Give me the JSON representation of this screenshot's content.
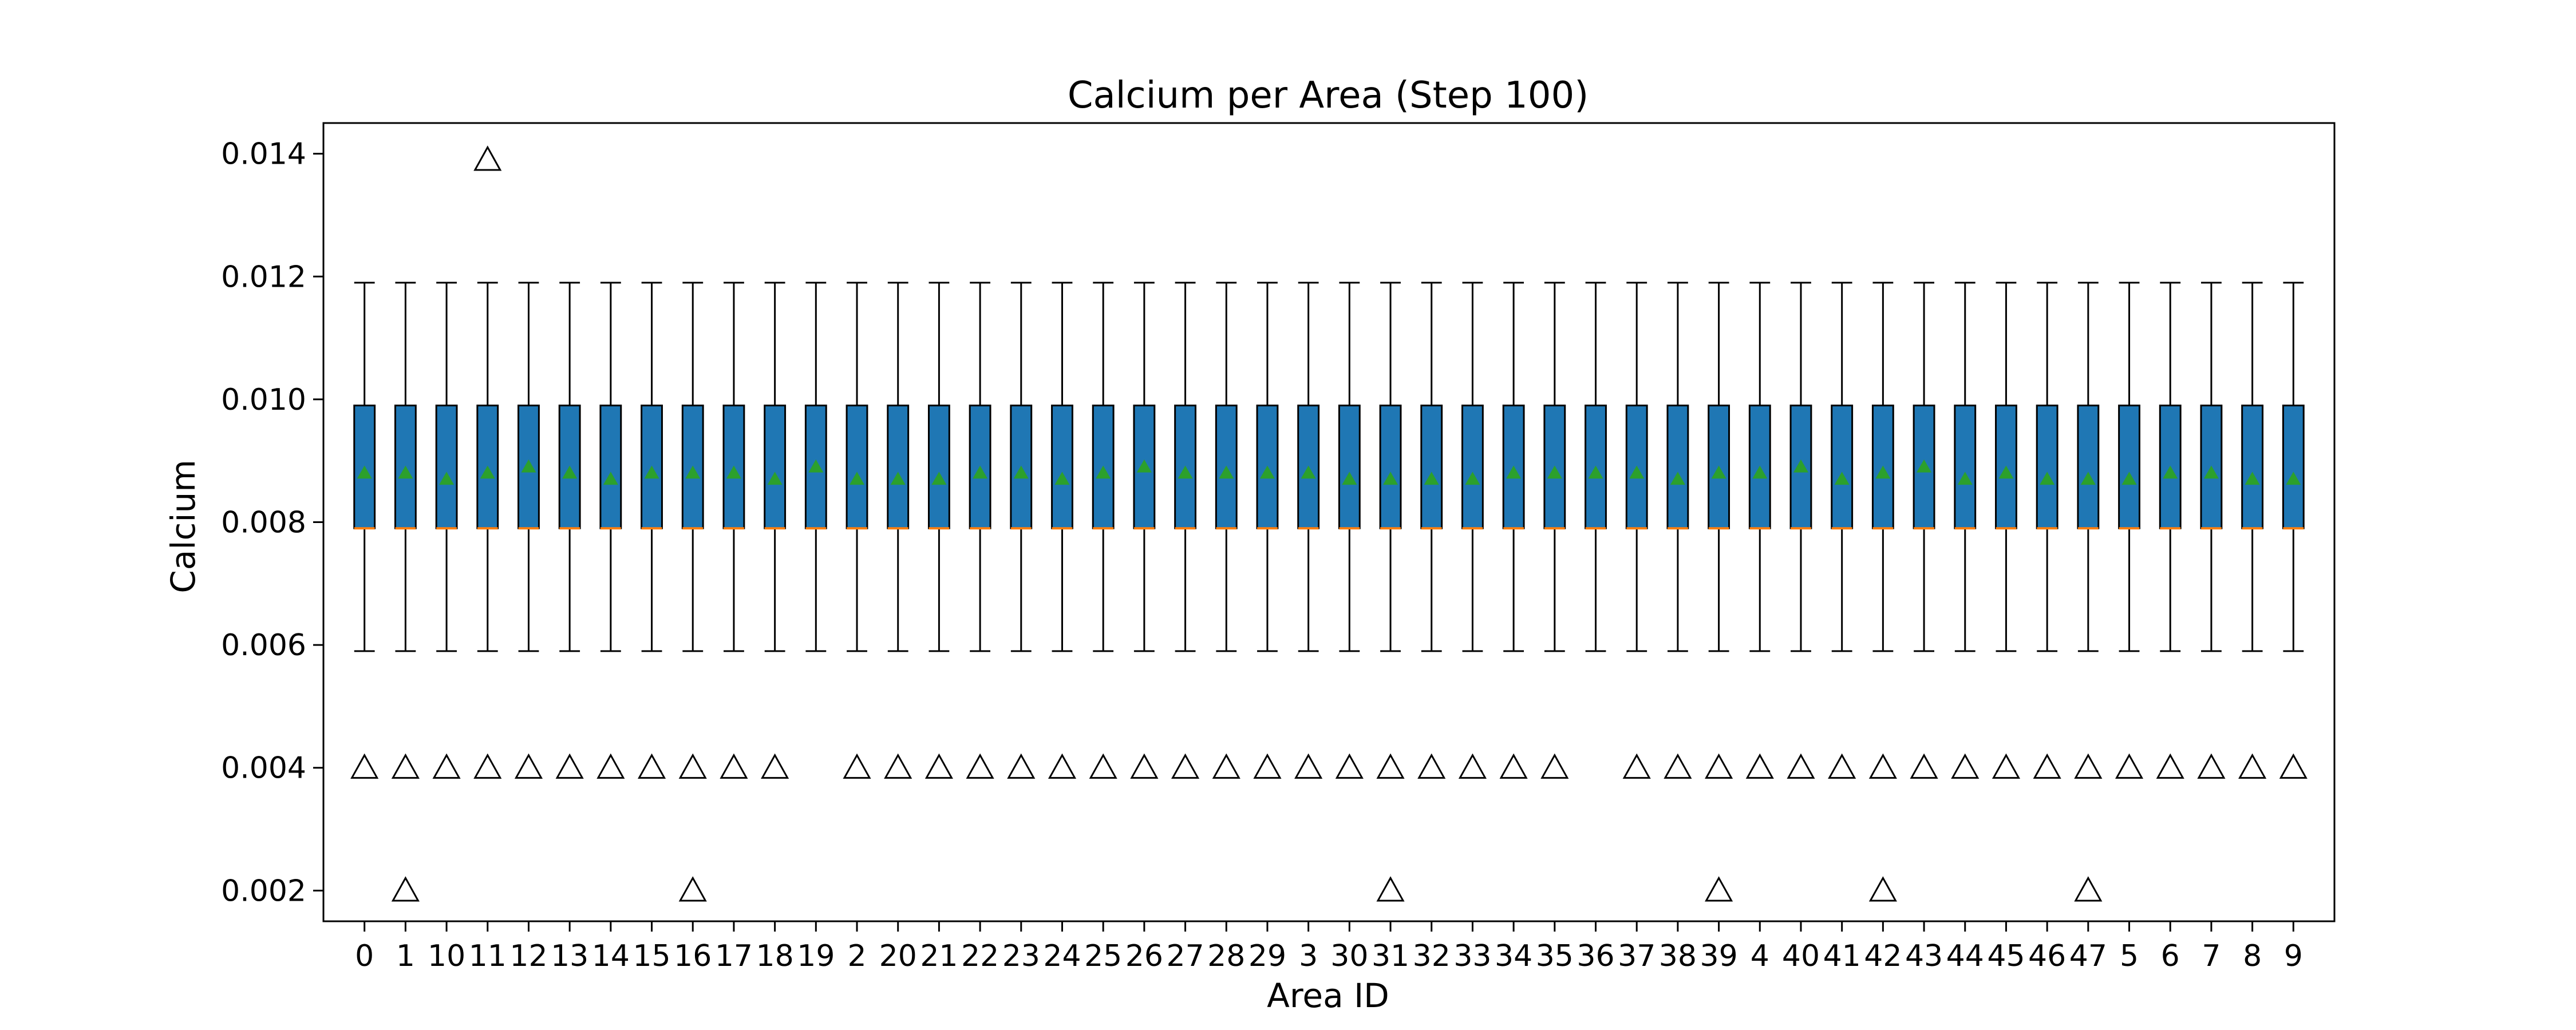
{
  "chart_data": {
    "type": "box",
    "title": "Calcium per Area (Step 100)",
    "xlabel": "Area ID",
    "ylabel": "Calcium",
    "ylim": [
      0.0015,
      0.0145
    ],
    "yticks": [
      0.002,
      0.004,
      0.006,
      0.008,
      0.01,
      0.012,
      0.014
    ],
    "ytick_labels": [
      "0.002",
      "0.004",
      "0.006",
      "0.008",
      "0.010",
      "0.012",
      "0.014"
    ],
    "categories": [
      "0",
      "1",
      "10",
      "11",
      "12",
      "13",
      "14",
      "15",
      "16",
      "17",
      "18",
      "19",
      "2",
      "20",
      "21",
      "22",
      "23",
      "24",
      "25",
      "26",
      "27",
      "28",
      "29",
      "3",
      "30",
      "31",
      "32",
      "33",
      "34",
      "35",
      "36",
      "37",
      "38",
      "39",
      "4",
      "40",
      "41",
      "42",
      "43",
      "44",
      "45",
      "46",
      "47",
      "5",
      "6",
      "7",
      "8",
      "9"
    ],
    "box": {
      "whisker_low": 0.0059,
      "q1": 0.0079,
      "median": 0.0079,
      "q3": 0.0099,
      "whisker_high": 0.0119
    },
    "means": [
      0.0088,
      0.0088,
      0.0087,
      0.0088,
      0.0089,
      0.0088,
      0.0087,
      0.0088,
      0.0088,
      0.0088,
      0.0087,
      0.0089,
      0.0087,
      0.0087,
      0.0087,
      0.0088,
      0.0088,
      0.0087,
      0.0088,
      0.0089,
      0.0088,
      0.0088,
      0.0088,
      0.0088,
      0.0087,
      0.0087,
      0.0087,
      0.0087,
      0.0088,
      0.0088,
      0.0088,
      0.0088,
      0.0087,
      0.0088,
      0.0088,
      0.0089,
      0.0087,
      0.0088,
      0.0089,
      0.0087,
      0.0088,
      0.0087,
      0.0087,
      0.0087,
      0.0088,
      0.0088,
      0.0087,
      0.0087
    ],
    "outliers": [
      {
        "category": "0",
        "values": [
          0.004
        ]
      },
      {
        "category": "1",
        "values": [
          0.004,
          0.002
        ]
      },
      {
        "category": "10",
        "values": [
          0.004
        ]
      },
      {
        "category": "11",
        "values": [
          0.004,
          0.0139
        ]
      },
      {
        "category": "12",
        "values": [
          0.004
        ]
      },
      {
        "category": "13",
        "values": [
          0.004
        ]
      },
      {
        "category": "14",
        "values": [
          0.004
        ]
      },
      {
        "category": "15",
        "values": [
          0.004
        ]
      },
      {
        "category": "16",
        "values": [
          0.004,
          0.002
        ]
      },
      {
        "category": "17",
        "values": [
          0.004
        ]
      },
      {
        "category": "18",
        "values": [
          0.004
        ]
      },
      {
        "category": "2",
        "values": [
          0.004
        ]
      },
      {
        "category": "20",
        "values": [
          0.004
        ]
      },
      {
        "category": "21",
        "values": [
          0.004
        ]
      },
      {
        "category": "22",
        "values": [
          0.004
        ]
      },
      {
        "category": "23",
        "values": [
          0.004
        ]
      },
      {
        "category": "24",
        "values": [
          0.004
        ]
      },
      {
        "category": "25",
        "values": [
          0.004
        ]
      },
      {
        "category": "26",
        "values": [
          0.004
        ]
      },
      {
        "category": "27",
        "values": [
          0.004
        ]
      },
      {
        "category": "28",
        "values": [
          0.004
        ]
      },
      {
        "category": "29",
        "values": [
          0.004
        ]
      },
      {
        "category": "3",
        "values": [
          0.004
        ]
      },
      {
        "category": "30",
        "values": [
          0.004
        ]
      },
      {
        "category": "31",
        "values": [
          0.004,
          0.002
        ]
      },
      {
        "category": "32",
        "values": [
          0.004
        ]
      },
      {
        "category": "33",
        "values": [
          0.004
        ]
      },
      {
        "category": "34",
        "values": [
          0.004
        ]
      },
      {
        "category": "35",
        "values": [
          0.004
        ]
      },
      {
        "category": "37",
        "values": [
          0.004
        ]
      },
      {
        "category": "38",
        "values": [
          0.004
        ]
      },
      {
        "category": "39",
        "values": [
          0.004,
          0.002
        ]
      },
      {
        "category": "4",
        "values": [
          0.004
        ]
      },
      {
        "category": "40",
        "values": [
          0.004
        ]
      },
      {
        "category": "41",
        "values": [
          0.004
        ]
      },
      {
        "category": "42",
        "values": [
          0.004,
          0.002
        ]
      },
      {
        "category": "43",
        "values": [
          0.004
        ]
      },
      {
        "category": "44",
        "values": [
          0.004
        ]
      },
      {
        "category": "45",
        "values": [
          0.004
        ]
      },
      {
        "category": "46",
        "values": [
          0.004
        ]
      },
      {
        "category": "47",
        "values": [
          0.004,
          0.002
        ]
      },
      {
        "category": "5",
        "values": [
          0.004
        ]
      },
      {
        "category": "6",
        "values": [
          0.004
        ]
      },
      {
        "category": "7",
        "values": [
          0.004
        ]
      },
      {
        "category": "8",
        "values": [
          0.004
        ]
      },
      {
        "category": "9",
        "values": [
          0.004
        ]
      }
    ],
    "grid": false,
    "legend": "none",
    "colors": {
      "box_fill": "#1f77b4",
      "box_edge": "#000000",
      "median": "#ff7f0e",
      "mean_marker": "#2ca02c",
      "outlier_edge": "#000000"
    }
  }
}
